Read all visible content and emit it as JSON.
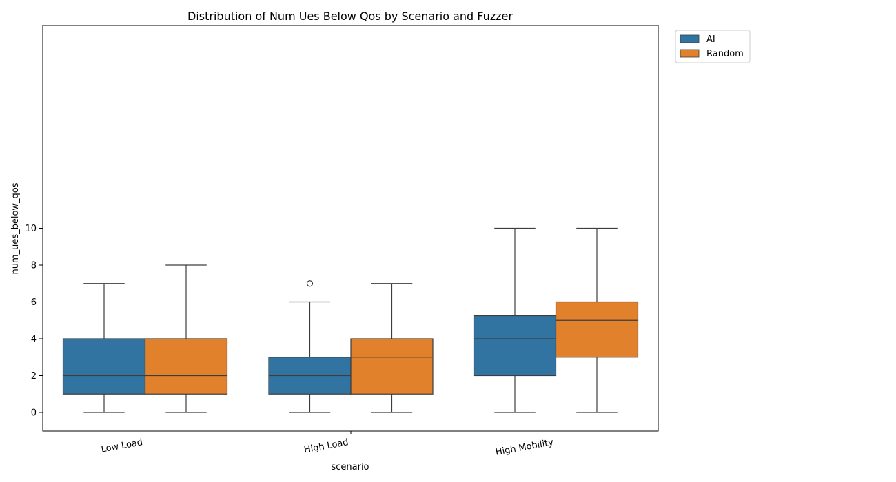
{
  "chart_data": {
    "type": "box",
    "title": "Distribution of Num Ues Below Qos by Scenario and Fuzzer",
    "xlabel": "scenario",
    "ylabel": "num_ues_below_qos",
    "categories": [
      "Low Load",
      "High Load",
      "High Mobility"
    ],
    "ylim": [
      -0.5,
      10.5
    ],
    "yticks": [
      "0",
      "2",
      "4",
      "6",
      "8",
      "10"
    ],
    "grid": false,
    "legend_position": "top-right outside",
    "series": [
      {
        "name": "AI",
        "color": "#3274a1",
        "boxes": [
          {
            "whisker_low": 0,
            "q1": 1,
            "median": 2,
            "q3": 4,
            "whisker_high": 7,
            "outliers": []
          },
          {
            "whisker_low": 0,
            "q1": 1,
            "median": 2,
            "q3": 3,
            "whisker_high": 6,
            "outliers": [
              7
            ]
          },
          {
            "whisker_low": 0,
            "q1": 2,
            "median": 4,
            "q3": 5.25,
            "whisker_high": 10,
            "outliers": []
          }
        ]
      },
      {
        "name": "Random",
        "color": "#e1812c",
        "boxes": [
          {
            "whisker_low": 0,
            "q1": 1,
            "median": 2,
            "q3": 4,
            "whisker_high": 8,
            "outliers": []
          },
          {
            "whisker_low": 0,
            "q1": 1,
            "median": 3,
            "q3": 4,
            "whisker_high": 7,
            "outliers": []
          },
          {
            "whisker_low": 0,
            "q1": 3,
            "median": 5,
            "q3": 6,
            "whisker_high": 10,
            "outliers": []
          }
        ]
      }
    ]
  }
}
